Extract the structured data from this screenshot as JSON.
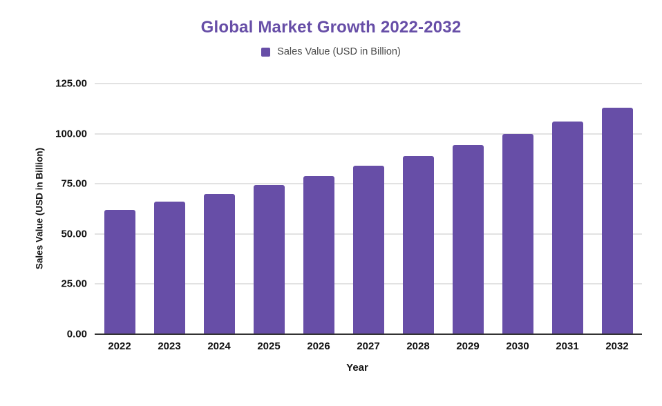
{
  "header": {
    "title": "Global Market Growth 2022-2032"
  },
  "legend": {
    "label": "Sales Value (USD in Billion)"
  },
  "chart_data": {
    "type": "bar",
    "title": "Global Market Growth 2022-2032",
    "series_name": "Sales Value (USD in Billion)",
    "categories": [
      "2022",
      "2023",
      "2024",
      "2025",
      "2026",
      "2027",
      "2028",
      "2029",
      "2030",
      "2031",
      "2032"
    ],
    "values": [
      62,
      66,
      70,
      74.5,
      79,
      84,
      89,
      94.5,
      100,
      106,
      113
    ],
    "xlabel": "Year",
    "ylabel": "Sales Value (USD in Billion)",
    "ylim": [
      0,
      125
    ],
    "ytick_step": 25,
    "ytick_labels": [
      "0.00",
      "25.00",
      "50.00",
      "75.00",
      "100.00",
      "125.00"
    ],
    "grid": "horizontal",
    "legend_position": "top"
  },
  "colors": {
    "bar": "#674EA7",
    "title": "#674EA7",
    "gridline": "#e2e2e2",
    "axis_line": "#333333",
    "tick_text": "#111111",
    "legend_text": "#4a4a4a",
    "background": "#ffffff"
  }
}
